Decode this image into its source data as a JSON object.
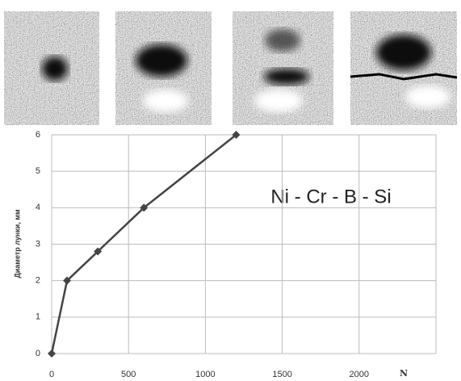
{
  "chart_data": {
    "type": "line",
    "x_label": "N",
    "y_label": "Диаметр лунки, мм",
    "annotation": "Ni - Cr - B - Si",
    "x": [
      0,
      100,
      300,
      600,
      1200
    ],
    "series": [
      {
        "color": "#444444",
        "values": [
          0,
          2,
          2.8,
          4,
          6
        ]
      }
    ],
    "xlim": [
      0,
      2500
    ],
    "xticks": [
      0,
      500,
      1000,
      1500,
      2000
    ],
    "ylim": [
      0,
      6
    ],
    "yticks": [
      0,
      1,
      2,
      3,
      4,
      5,
      6
    ],
    "grid": true
  }
}
